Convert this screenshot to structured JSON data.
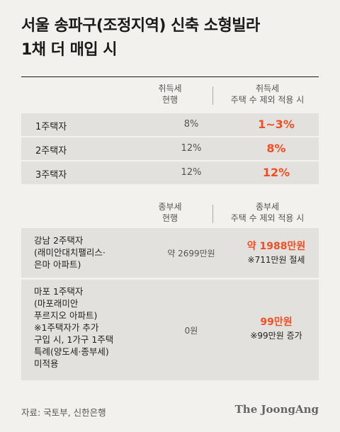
{
  "title_line1": "서울 송파구(조정지역) 신축 소형빌라",
  "title_line2": "1채 더 매입 시",
  "acq": {
    "head_cur_1": "취득세",
    "head_cur_2": "현행",
    "head_new_1": "취득세",
    "head_new_2": "주택 수 제외 적용 시",
    "rows": [
      {
        "label": "1주택자",
        "current": "8%",
        "new": "1~3%"
      },
      {
        "label": "2주택자",
        "current": "12%",
        "new": "8%"
      },
      {
        "label": "3주택자",
        "current": "12%",
        "new": "12%"
      }
    ]
  },
  "prop": {
    "head_cur_1": "종부세",
    "head_cur_2": "현행",
    "head_new_1": "종부세",
    "head_new_2": "주택 수 제외 적용 시",
    "rows": [
      {
        "label_lines": [
          "강남 2주택자",
          "(래미안대치팰리스·",
          "은마 아파트)"
        ],
        "current": "약 2699만원",
        "new_value": "약 1988만원",
        "new_note": "※711만원 절세"
      },
      {
        "label_lines": [
          "마포 1주택자",
          "(마포래미안",
          "푸르지오 아파트)",
          "※1주택자가 추가",
          "구입 시, 1가구 1주택",
          "특례(양도세·종부세)",
          "미적용"
        ],
        "current": "0원",
        "new_value": "99만원",
        "new_note": "※99만원 증가"
      }
    ]
  },
  "source": "자료: 국토부, 신한은행",
  "brand": "The JoongAng",
  "colors": {
    "accent": "#f04e23",
    "background": "#f2f1ee",
    "row_bg": "#e2e1de"
  }
}
